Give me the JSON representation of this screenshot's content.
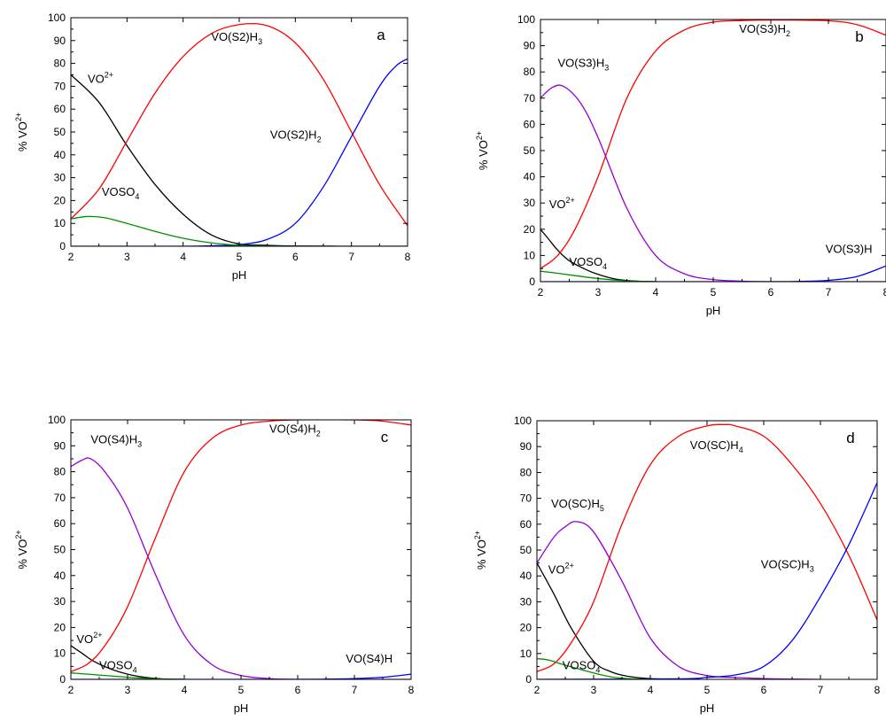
{
  "chart_data": [
    {
      "type": "line",
      "panel_letter": "a",
      "xlabel": "pH",
      "ylabel": "% VO",
      "ylabel_sup": "2+",
      "xlim": [
        2,
        8
      ],
      "ylim": [
        0,
        100
      ],
      "xticks": [
        2,
        3,
        4,
        5,
        6,
        7,
        8
      ],
      "yticks": [
        0,
        10,
        20,
        30,
        40,
        50,
        60,
        70,
        80,
        90,
        100
      ],
      "grid": false,
      "series": [
        {
          "color": "#000000",
          "x": [
            2,
            2.5,
            3,
            3.5,
            4,
            4.5,
            5,
            5.5,
            6,
            7,
            8
          ],
          "y": [
            75,
            63,
            44,
            27,
            14,
            5,
            1,
            0.4,
            0.1,
            0,
            0
          ]
        },
        {
          "color": "#ff0000",
          "x": [
            2,
            2.5,
            3,
            3.5,
            4,
            4.5,
            5,
            5.5,
            6,
            6.5,
            7,
            7.5,
            8
          ],
          "y": [
            12,
            25,
            46,
            67,
            83,
            93,
            97,
            96.5,
            89,
            73,
            50,
            27,
            9
          ]
        },
        {
          "color": "#0000ff",
          "x": [
            2,
            4,
            4.5,
            5,
            5.5,
            6,
            6.5,
            7,
            7.5,
            7.8,
            8
          ],
          "y": [
            0,
            0,
            0.2,
            0.7,
            3,
            10,
            26,
            48,
            70,
            79,
            82
          ]
        },
        {
          "color": "#009000",
          "x": [
            2,
            2.3,
            2.6,
            3,
            3.5,
            4,
            4.5,
            5,
            5.5,
            6
          ],
          "y": [
            12,
            13,
            12.5,
            10,
            6.5,
            3.5,
            1.5,
            0.4,
            0.1,
            0
          ]
        }
      ],
      "labels": [
        {
          "base": "VO",
          "sup": "2+",
          "x": 2.3,
          "y": 71.5
        },
        {
          "base": "VO(S2)H",
          "sub": "3",
          "x": 4.5,
          "y": 90
        },
        {
          "base": "VO(S2)H",
          "sub": "2",
          "x": 5.55,
          "y": 47
        },
        {
          "base": "VOSO",
          "sub": "4",
          "x": 2.55,
          "y": 22
        }
      ]
    },
    {
      "type": "line",
      "panel_letter": "b",
      "xlabel": "pH",
      "ylabel": "% VO",
      "ylabel_sup": "2+",
      "xlim": [
        2,
        8
      ],
      "ylim": [
        0,
        100
      ],
      "xticks": [
        2,
        3,
        4,
        5,
        6,
        7,
        8
      ],
      "yticks": [
        0,
        10,
        20,
        30,
        40,
        50,
        60,
        70,
        80,
        90,
        100
      ],
      "grid": false,
      "series": [
        {
          "color": "#000000",
          "x": [
            2,
            2.15,
            2.3,
            2.5,
            2.8,
            3,
            3.3,
            3.6,
            4
          ],
          "y": [
            20,
            16,
            12,
            8,
            4.5,
            2.8,
            1,
            0.3,
            0
          ]
        },
        {
          "color": "#ff0000",
          "x": [
            2,
            2.3,
            2.6,
            3,
            3.5,
            4,
            4.5,
            5,
            5.5,
            6,
            7,
            7.5,
            8
          ],
          "y": [
            5,
            10,
            20,
            40,
            70,
            88,
            96,
            99,
            99.6,
            99.8,
            99.5,
            98,
            94
          ]
        },
        {
          "color": "#9400d3",
          "x": [
            2,
            2.2,
            2.4,
            2.7,
            3,
            3.5,
            4,
            4.5,
            5,
            5.5,
            6,
            8
          ],
          "y": [
            70,
            74,
            74.5,
            68,
            55,
            28,
            10,
            3,
            0.8,
            0.2,
            0,
            0
          ]
        },
        {
          "color": "#0000ff",
          "x": [
            2,
            6,
            6.5,
            7,
            7.5,
            8
          ],
          "y": [
            0,
            0,
            0.1,
            0.5,
            2,
            6
          ]
        },
        {
          "color": "#009000",
          "x": [
            2,
            2.3,
            2.6,
            3,
            3.3,
            3.6,
            4
          ],
          "y": [
            4,
            3.2,
            2.3,
            1.2,
            0.6,
            0.2,
            0
          ]
        }
      ],
      "labels": [
        {
          "base": "VO(S3)H",
          "sub": "3",
          "x": 2.3,
          "y": 82
        },
        {
          "base": "VO(S3)H",
          "sub": "2",
          "x": 5.45,
          "y": 95
        },
        {
          "base": "VO",
          "sup": "2+",
          "x": 2.15,
          "y": 28
        },
        {
          "base": "VOSO",
          "sub": "4",
          "x": 2.5,
          "y": 6
        },
        {
          "base": "VO(S3)H",
          "x": 6.95,
          "y": 11
        }
      ]
    },
    {
      "type": "line",
      "panel_letter": "c",
      "xlabel": "pH",
      "ylabel": "% VO",
      "ylabel_sup": "2+",
      "xlim": [
        2,
        8
      ],
      "ylim": [
        0,
        100
      ],
      "xticks": [
        2,
        3,
        4,
        5,
        6,
        7,
        8
      ],
      "yticks": [
        0,
        10,
        20,
        30,
        40,
        50,
        60,
        70,
        80,
        90,
        100
      ],
      "grid": false,
      "series": [
        {
          "color": "#000000",
          "x": [
            2,
            2.2,
            2.4,
            2.7,
            3,
            3.3,
            3.6,
            4
          ],
          "y": [
            13,
            10,
            7,
            4,
            2,
            0.8,
            0.2,
            0
          ]
        },
        {
          "color": "#ff0000",
          "x": [
            2,
            2.3,
            2.6,
            3,
            3.5,
            4,
            4.5,
            5,
            5.5,
            6,
            7,
            7.5,
            8
          ],
          "y": [
            3,
            6,
            13,
            28,
            55,
            80,
            93,
            98,
            99.5,
            100,
            100,
            99.5,
            98
          ]
        },
        {
          "color": "#9400d3",
          "x": [
            2,
            2.2,
            2.35,
            2.6,
            3,
            3.5,
            4,
            4.5,
            5,
            5.5,
            6,
            8
          ],
          "y": [
            82,
            84.5,
            85,
            80,
            66,
            40,
            17,
            5.5,
            1.5,
            0.3,
            0,
            0
          ]
        },
        {
          "color": "#0000ff",
          "x": [
            2,
            6,
            6.5,
            7,
            7.5,
            8
          ],
          "y": [
            0,
            0,
            0.1,
            0.3,
            0.8,
            2
          ]
        },
        {
          "color": "#009000",
          "x": [
            2,
            2.3,
            2.6,
            3,
            3.3,
            3.6,
            4
          ],
          "y": [
            2.5,
            2,
            1.5,
            0.8,
            0.4,
            0.1,
            0
          ]
        }
      ],
      "labels": [
        {
          "base": "VO(S4)H",
          "sub": "3",
          "x": 2.35,
          "y": 91
        },
        {
          "base": "VO(S4)H",
          "sub": "2",
          "x": 5.5,
          "y": 95
        },
        {
          "base": "VO",
          "sup": "2+",
          "x": 2.1,
          "y": 14
        },
        {
          "base": "VOSO",
          "sub": "4",
          "x": 2.5,
          "y": 4
        },
        {
          "base": "VO(S4)H",
          "x": 6.85,
          "y": 6.5
        }
      ]
    },
    {
      "type": "line",
      "panel_letter": "d",
      "xlabel": "pH",
      "ylabel": "% VO",
      "ylabel_sup": "2+",
      "xlim": [
        2,
        8
      ],
      "ylim": [
        0,
        100
      ],
      "xticks": [
        2,
        3,
        4,
        5,
        6,
        7,
        8
      ],
      "yticks": [
        0,
        10,
        20,
        30,
        40,
        50,
        60,
        70,
        80,
        90,
        100
      ],
      "grid": false,
      "series": [
        {
          "color": "#000000",
          "x": [
            2,
            2.3,
            2.6,
            3,
            3.3,
            3.6,
            4,
            4.5
          ],
          "y": [
            45,
            33,
            20,
            7,
            3,
            1.2,
            0.3,
            0
          ]
        },
        {
          "color": "#ff0000",
          "x": [
            2,
            2.3,
            2.6,
            3,
            3.5,
            4,
            4.5,
            5,
            5.3,
            5.5,
            6,
            6.5,
            7,
            7.5,
            8
          ],
          "y": [
            3,
            6,
            14,
            30,
            60,
            83,
            94,
            98,
            98.5,
            98,
            94,
            83,
            68,
            48,
            23
          ]
        },
        {
          "color": "#9400d3",
          "x": [
            2,
            2.3,
            2.5,
            2.7,
            3,
            3.5,
            4,
            4.5,
            5,
            5.4,
            6,
            6.5,
            7
          ],
          "y": [
            45,
            55,
            59,
            61,
            57,
            38,
            16,
            5,
            1.5,
            0.8,
            0.3,
            0.1,
            0
          ]
        },
        {
          "color": "#0000ff",
          "x": [
            2,
            4.5,
            5,
            5.5,
            6,
            6.5,
            7,
            7.5,
            8
          ],
          "y": [
            0,
            0.2,
            0.8,
            1.7,
            5,
            15,
            32,
            52,
            76
          ]
        },
        {
          "color": "#009000",
          "x": [
            2,
            2.2,
            2.5,
            3,
            3.3,
            3.6,
            4
          ],
          "y": [
            8,
            7.5,
            5.5,
            2.5,
            1,
            0.3,
            0
          ]
        }
      ],
      "labels": [
        {
          "base": "VO(SC)H",
          "sub": "4",
          "x": 4.7,
          "y": 89
        },
        {
          "base": "VO(SC)H",
          "sub": "5",
          "x": 2.25,
          "y": 66.5
        },
        {
          "base": "VO",
          "sup": "2+",
          "x": 2.2,
          "y": 41
        },
        {
          "base": "VO(SC)H",
          "sub": "3",
          "x": 5.95,
          "y": 43
        },
        {
          "base": "VOSO",
          "sub": "4",
          "x": 2.45,
          "y": 4
        }
      ]
    }
  ]
}
